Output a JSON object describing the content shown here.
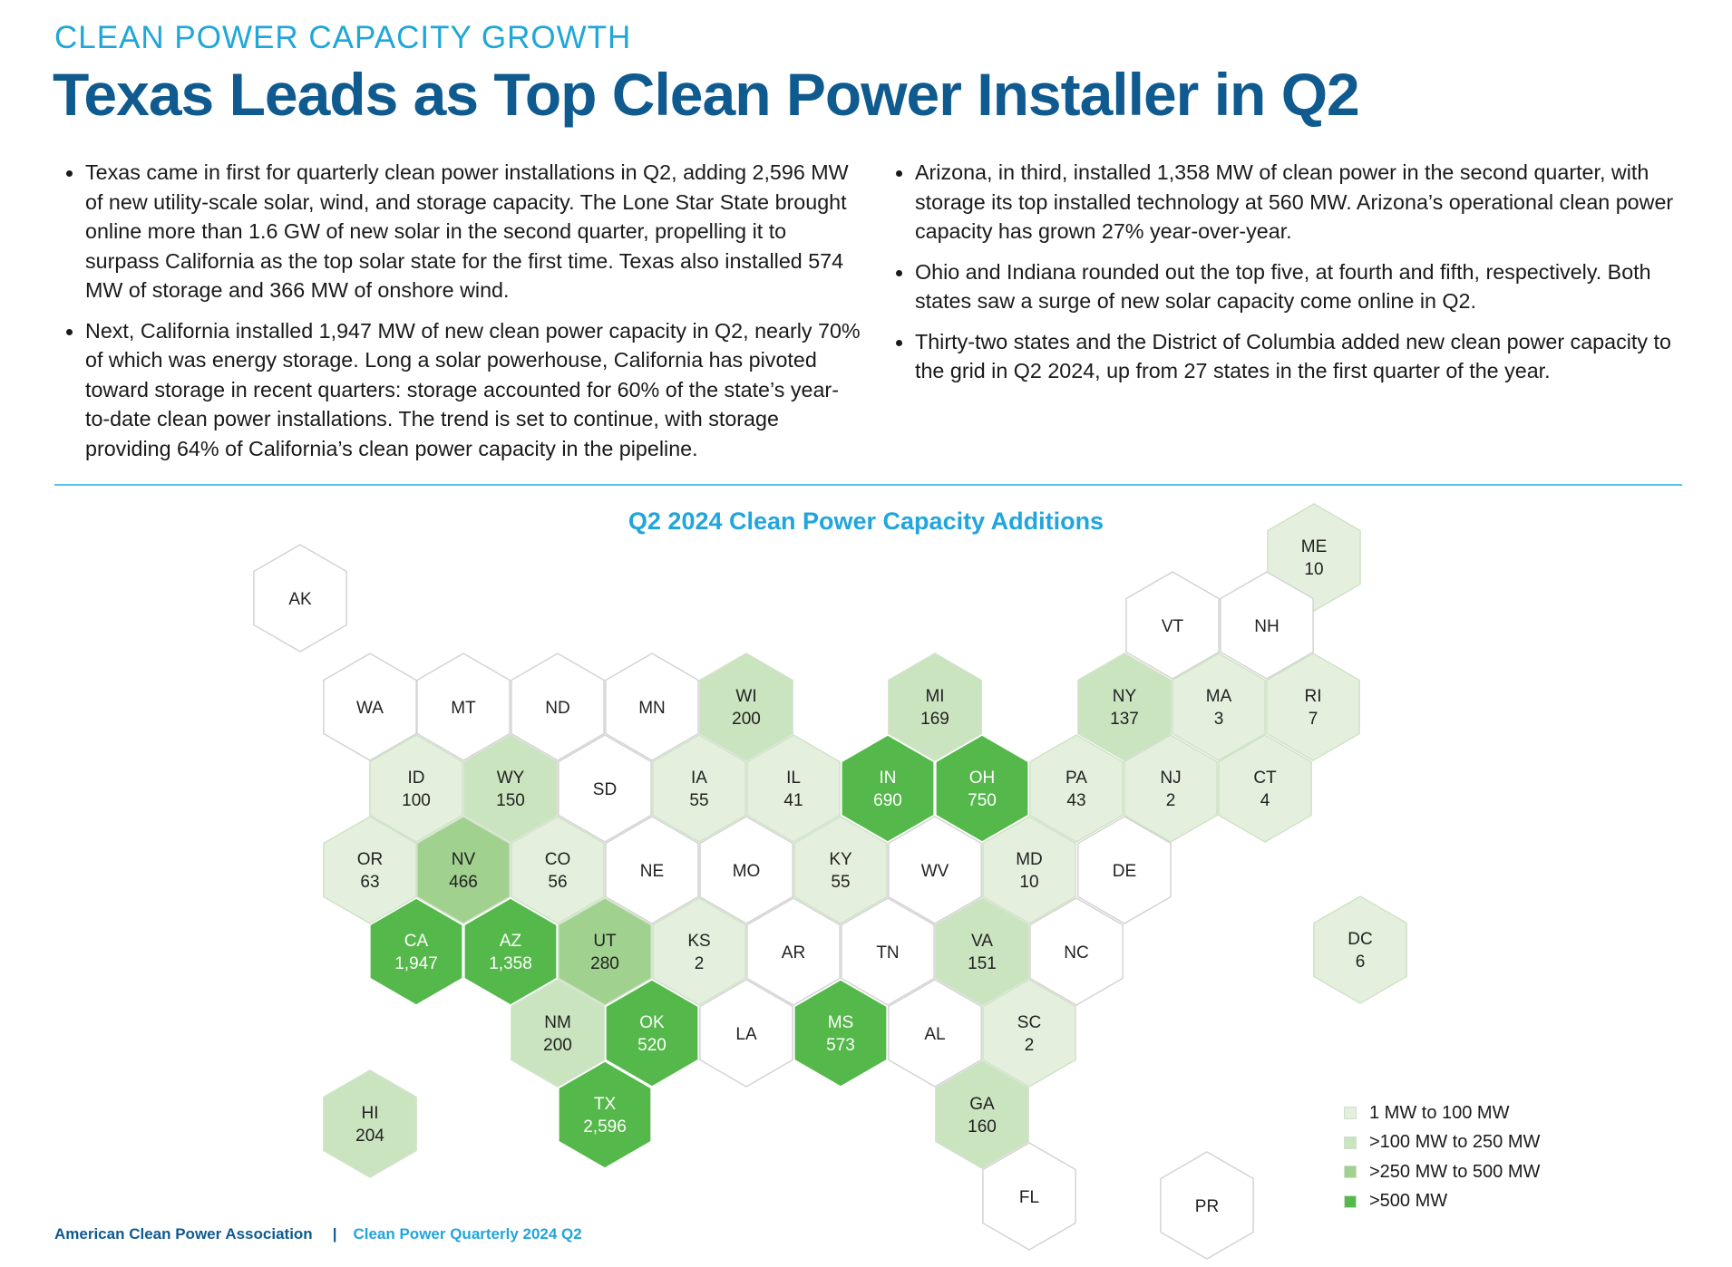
{
  "header": {
    "kicker": "CLEAN POWER CAPACITY GROWTH",
    "headline": "Texas Leads as Top Clean Power Installer in Q2"
  },
  "bullets_left": [
    "Texas came in first for quarterly clean power installations in Q2, adding 2,596 MW of new utility-scale solar, wind, and storage capacity. The Lone Star State brought online more than 1.6 GW of new solar in the second quarter, propelling it to surpass California as the top solar state for the first time. Texas also installed 574 MW of storage and 366 MW of onshore wind.",
    "Next, California installed 1,947 MW of new clean power capacity in Q2, nearly 70% of which was energy storage. Long a solar powerhouse, California has pivoted toward storage in recent quarters: storage accounted for 60% of the state’s year-to-date clean power installations. The trend is set to continue, with storage providing 64% of California’s clean power capacity in the pipeline."
  ],
  "bullets_right": [
    "Arizona, in third, installed 1,358 MW of clean power in the second quarter, with storage its top installed technology at 560 MW. Arizona’s operational clean power capacity has grown 27% year-over-year.",
    "Ohio and Indiana rounded out the top five, at fourth and fifth, respectively. Both states saw a surge of new solar capacity come online in Q2.",
    "Thirty-two states and the District of Columbia added new clean power capacity to the grid in Q2 2024, up from 27 states in the first quarter of the year."
  ],
  "map": {
    "title": "Q2 2024 Clean Power Capacity Additions",
    "colors": {
      "none": "#ffffff",
      "tier1": "#e4f0dd",
      "tier2": "#cbe4c0",
      "tier3": "#a0d18f",
      "tier4": "#54b84a",
      "border": "#d3d3d3"
    },
    "states": [
      {
        "abbr": "AK",
        "value": ""
      },
      {
        "abbr": "ME",
        "value": "10"
      },
      {
        "abbr": "VT",
        "value": ""
      },
      {
        "abbr": "NH",
        "value": ""
      },
      {
        "abbr": "WA",
        "value": ""
      },
      {
        "abbr": "MT",
        "value": ""
      },
      {
        "abbr": "ND",
        "value": ""
      },
      {
        "abbr": "MN",
        "value": ""
      },
      {
        "abbr": "WI",
        "value": "200"
      },
      {
        "abbr": "MI",
        "value": "169"
      },
      {
        "abbr": "NY",
        "value": "137"
      },
      {
        "abbr": "MA",
        "value": "3"
      },
      {
        "abbr": "RI",
        "value": "7"
      },
      {
        "abbr": "ID",
        "value": "100"
      },
      {
        "abbr": "WY",
        "value": "150"
      },
      {
        "abbr": "SD",
        "value": ""
      },
      {
        "abbr": "IA",
        "value": "55"
      },
      {
        "abbr": "IL",
        "value": "41"
      },
      {
        "abbr": "IN",
        "value": "690"
      },
      {
        "abbr": "OH",
        "value": "750"
      },
      {
        "abbr": "PA",
        "value": "43"
      },
      {
        "abbr": "NJ",
        "value": "2"
      },
      {
        "abbr": "CT",
        "value": "4"
      },
      {
        "abbr": "OR",
        "value": "63"
      },
      {
        "abbr": "NV",
        "value": "466"
      },
      {
        "abbr": "CO",
        "value": "56"
      },
      {
        "abbr": "NE",
        "value": ""
      },
      {
        "abbr": "MO",
        "value": ""
      },
      {
        "abbr": "KY",
        "value": "55"
      },
      {
        "abbr": "WV",
        "value": ""
      },
      {
        "abbr": "MD",
        "value": "10"
      },
      {
        "abbr": "DE",
        "value": ""
      },
      {
        "abbr": "CA",
        "value": "1,947"
      },
      {
        "abbr": "AZ",
        "value": "1,358"
      },
      {
        "abbr": "UT",
        "value": "280"
      },
      {
        "abbr": "KS",
        "value": "2"
      },
      {
        "abbr": "AR",
        "value": ""
      },
      {
        "abbr": "TN",
        "value": ""
      },
      {
        "abbr": "VA",
        "value": "151"
      },
      {
        "abbr": "NC",
        "value": ""
      },
      {
        "abbr": "DC",
        "value": "6"
      },
      {
        "abbr": "NM",
        "value": "200"
      },
      {
        "abbr": "OK",
        "value": "520"
      },
      {
        "abbr": "LA",
        "value": ""
      },
      {
        "abbr": "MS",
        "value": "573"
      },
      {
        "abbr": "AL",
        "value": ""
      },
      {
        "abbr": "SC",
        "value": "2"
      },
      {
        "abbr": "HI",
        "value": "204"
      },
      {
        "abbr": "TX",
        "value": "2,596"
      },
      {
        "abbr": "GA",
        "value": "160"
      },
      {
        "abbr": "FL",
        "value": ""
      },
      {
        "abbr": "PR",
        "value": ""
      }
    ]
  },
  "legend": {
    "items": [
      {
        "label": "1 MW to 100 MW",
        "color": "#e4f0dd"
      },
      {
        "label": ">100 MW to 250 MW",
        "color": "#cbe4c0"
      },
      {
        "label": ">250 MW to 500 MW",
        "color": "#a0d18f"
      },
      {
        "label": ">500 MW",
        "color": "#54b84a"
      }
    ]
  },
  "footer": {
    "org": "American Clean Power Association",
    "separator": "|",
    "publication": "Clean Power Quarterly 2024 Q2"
  }
}
